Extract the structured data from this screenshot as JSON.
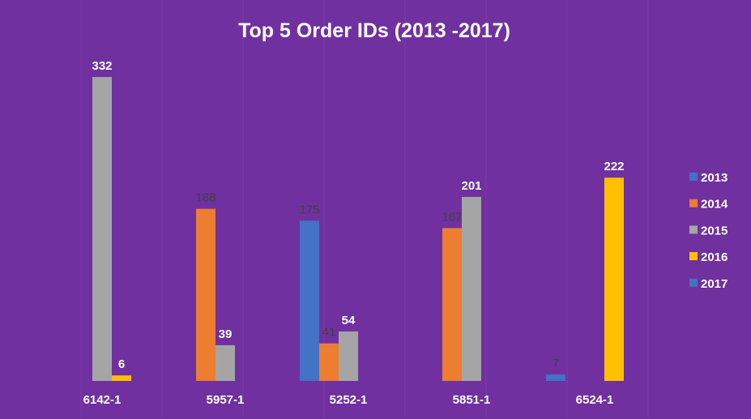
{
  "chart_data": {
    "type": "bar",
    "title": "Top 5 Order IDs (2013 -2017)",
    "xlabel": "",
    "ylabel": "",
    "categories": [
      "6142-1",
      "5957-1",
      "5252-1",
      "5851-1",
      "6524-1"
    ],
    "series": [
      {
        "name": "2013",
        "color": "#4472c4",
        "values": [
          null,
          null,
          175,
          null,
          7
        ]
      },
      {
        "name": "2014",
        "color": "#ed7d31",
        "values": [
          null,
          188,
          41,
          167,
          null
        ]
      },
      {
        "name": "2015",
        "color": "#a5a5a5",
        "values": [
          332,
          39,
          54,
          201,
          null
        ]
      },
      {
        "name": "2016",
        "color": "#ffc000",
        "values": [
          6,
          null,
          null,
          null,
          222
        ]
      },
      {
        "name": "2017",
        "color": "#4472c4",
        "values": [
          null,
          null,
          null,
          null,
          null
        ]
      }
    ],
    "ylim": [
      0,
      340
    ],
    "grid": false,
    "legend_position": "right",
    "background_color": "#7030a0"
  }
}
